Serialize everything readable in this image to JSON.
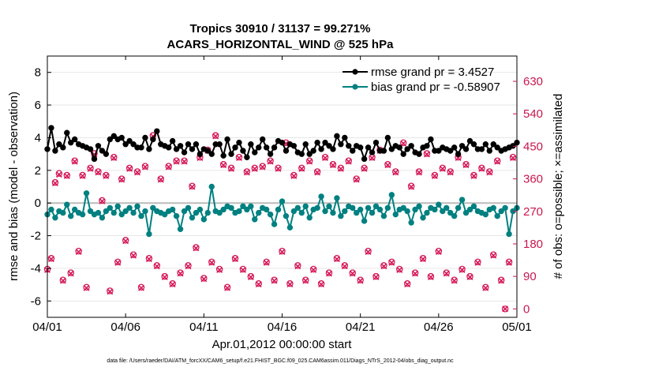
{
  "colors": {
    "rmse": "#000000",
    "bias": "#008080",
    "obs": "#d41a5a",
    "right_axis": "#c8174f",
    "legend_text": "#1a4fd6",
    "zero_line": "#bbbbbb",
    "grid": "#e3e3e3"
  },
  "chart_data": {
    "type": "line",
    "title_line1": "Tropics 30910 / 31137 = 99.271%",
    "title_line2": "ACARS_HORIZONTAL_WIND @ 525 hPa",
    "xlabel": "Apr.01,2012 00:00:00 start",
    "ylabel_left": "rmse and bias (model - observation)",
    "ylabel_right": "# of obs: o=possible; ×=assimilated",
    "footer": "data file: /Users/raeder/DAI/ATM_forcXX/CAM6_setup/f.e21.FHIST_BGC.f09_025.CAM6assim.011/Diags_NTrS_2012-04/obs_diag_output.nc",
    "x_range_days": [
      0,
      30
    ],
    "x_ticks": [
      {
        "day": 0,
        "label": "04/01"
      },
      {
        "day": 5,
        "label": "04/06"
      },
      {
        "day": 10,
        "label": "04/11"
      },
      {
        "day": 15,
        "label": "04/16"
      },
      {
        "day": 20,
        "label": "04/21"
      },
      {
        "day": 25,
        "label": "04/26"
      },
      {
        "day": 30,
        "label": "05/01"
      }
    ],
    "ylim_left": [
      -7,
      9
    ],
    "y_ticks_left": [
      8,
      6,
      4,
      2,
      0,
      -2,
      -4,
      -6
    ],
    "ylim_right": [
      -23.3,
      700
    ],
    "y_ticks_right": [
      630,
      540,
      450,
      360,
      270,
      180,
      90,
      0
    ],
    "legend": [
      {
        "name": "rmse grand pr = 3.4527",
        "series": "rmse"
      },
      {
        "name": "bias grand pr = -0.58907",
        "series": "bias"
      }
    ],
    "x_step_days": 0.25,
    "series": [
      {
        "name": "rmse",
        "values": [
          3.3,
          4.6,
          3.2,
          3.6,
          3.4,
          4.3,
          3.7,
          3.9,
          3.6,
          3.5,
          3.4,
          3.3,
          2.7,
          3.5,
          3.2,
          3.0,
          3.9,
          4.1,
          3.9,
          4.0,
          3.6,
          3.8,
          3.6,
          3.4,
          3.4,
          4.0,
          3.3,
          3.9,
          4.4,
          3.6,
          3.5,
          3.4,
          3.8,
          3.3,
          3.5,
          3.1,
          3.6,
          3.3,
          3.6,
          3.0,
          3.3,
          3.2,
          3.0,
          3.6,
          3.6,
          2.9,
          3.9,
          3.0,
          3.4,
          3.7,
          3.2,
          2.8,
          3.6,
          3.1,
          3.4,
          3.9,
          3.4,
          3.0,
          3.4,
          3.8,
          3.7,
          3.2,
          3.6,
          3.5,
          3.1,
          3.0,
          3.6,
          3.0,
          3.2,
          3.7,
          3.3,
          3.7,
          3.5,
          3.3,
          4.1,
          3.6,
          4.0,
          3.5,
          3.2,
          3.5,
          3.4,
          2.7,
          3.4,
          3.1,
          3.7,
          3.2,
          3.2,
          4.0,
          3.3,
          3.5,
          3.4,
          3.0,
          3.3,
          3.5,
          3.1,
          3.0,
          3.4,
          3.5,
          3.9,
          3.2,
          3.2,
          3.4,
          3.3,
          3.2,
          3.4,
          3.0,
          3.5,
          3.3,
          3.8,
          3.6,
          3.3,
          3.3,
          3.6,
          3.2,
          3.6,
          3.4,
          3.2,
          3.3,
          3.4,
          3.5,
          3.7
        ],
        "raw": [
          3.3,
          4.6,
          3.2,
          3.6,
          3.4,
          4.3,
          3.7,
          3.9,
          3.6,
          3.5,
          3.4,
          3.3,
          2.7,
          3.5,
          3.2,
          3.0,
          3.9,
          4.1,
          3.9,
          4.0,
          3.6,
          3.8,
          3.6,
          3.4,
          3.4,
          4.0,
          3.3,
          3.9,
          4.4,
          3.6,
          3.5,
          3.4,
          3.8,
          3.3,
          3.5,
          3.1,
          3.6,
          3.3,
          3.6,
          3.0
        ]
      },
      {
        "name": "bias",
        "values": [
          -0.7,
          -0.4,
          -0.9,
          -0.5,
          -0.6,
          -0.1,
          -0.8,
          -0.4,
          -0.6,
          -0.7,
          0.6,
          -0.5,
          -0.7,
          -0.6,
          -0.9,
          -0.5,
          -0.3,
          -0.6,
          -0.2,
          -0.7,
          -0.5,
          -0.3,
          -0.6,
          -0.2,
          -0.8,
          -0.5,
          -1.9,
          -0.3,
          -0.5,
          -0.6,
          -0.7,
          -0.5,
          -0.4,
          -0.8,
          -1.6,
          -0.5,
          -0.3,
          -0.9,
          -0.6,
          -0.4,
          -1.0,
          -0.6,
          1.0,
          -0.5,
          -0.6,
          -0.4,
          -0.2,
          -0.3,
          -0.6,
          -0.5,
          -0.2,
          -0.4,
          -0.2,
          -1.0,
          -0.6,
          -0.3,
          -0.4,
          -0.7,
          -1.3,
          -0.4,
          0.1,
          -0.8,
          -1.5,
          -0.5,
          -0.3,
          -0.6,
          -0.2,
          -0.9,
          -0.4,
          -0.3,
          0.4,
          -0.5,
          -0.2,
          -0.6,
          0.3,
          -0.8,
          -0.5,
          -0.2,
          -0.3,
          -0.6,
          -0.4,
          -1.1,
          -0.3,
          -0.6,
          -0.2,
          -0.4,
          -0.8,
          -0.3,
          0.5,
          -0.7,
          -0.4,
          -0.3,
          -0.5,
          -1.2,
          -0.4,
          -0.2,
          -0.9,
          -0.6,
          -0.3,
          -0.4,
          -0.1,
          -0.5,
          -0.3,
          -0.6,
          -0.8,
          -0.3,
          0.2,
          -0.6,
          -0.4,
          -0.2,
          -0.5,
          -0.6,
          -0.7,
          -0.4,
          -0.3,
          -0.8,
          -0.5,
          -0.3,
          -1.9,
          -0.5,
          -0.3
        ]
      },
      {
        "name": "obs_possible",
        "values": [
          110,
          140,
          350,
          375,
          80,
          370,
          100,
          410,
          160,
          370,
          60,
          390,
          430,
          380,
          300,
          370,
          50,
          420,
          130,
          360,
          190,
          390,
          150,
          380,
          60,
          395,
          140,
          480,
          120,
          360,
          90,
          395,
          70,
          410,
          100,
          410,
          120,
          340,
          170,
          420,
          85,
          440,
          130,
          480,
          110,
          400,
          60,
          390,
          140,
          420,
          110,
          380,
          90,
          390,
          70,
          395,
          130,
          410,
          80,
          390,
          160,
          460,
          70,
          370,
          120,
          390,
          80,
          410,
          110,
          380,
          70,
          420,
          100,
          400,
          140,
          390,
          120,
          410,
          100,
          360,
          80,
          390,
          160,
          420,
          90,
          440,
          120,
          400,
          130,
          380,
          110,
          460,
          70,
          340,
          100,
          380,
          140,
          430,
          90,
          370,
          160,
          390,
          100,
          380,
          80,
          420,
          110,
          400,
          90,
          370,
          130,
          390,
          60,
          380,
          150,
          410,
          80,
          0,
          130,
          420
        ]
      },
      {
        "name": "obs_assimilated",
        "values": [
          108,
          138,
          348,
          372,
          78,
          368,
          98,
          408,
          158,
          368,
          58,
          388,
          428,
          378,
          298,
          368,
          48,
          418,
          128,
          358,
          188,
          388,
          148,
          378,
          58,
          393,
          138,
          478,
          118,
          358,
          88,
          393,
          68,
          408,
          98,
          408,
          118,
          338,
          168,
          418,
          83,
          438,
          128,
          478,
          108,
          398,
          58,
          388,
          138,
          418,
          108,
          378,
          88,
          388,
          68,
          393,
          128,
          408,
          78,
          388,
          158,
          458,
          68,
          368,
          118,
          388,
          78,
          408,
          108,
          378,
          68,
          418,
          98,
          398,
          138,
          388,
          118,
          408,
          98,
          358,
          78,
          388,
          158,
          418,
          88,
          438,
          118,
          398,
          128,
          378,
          108,
          458,
          68,
          338,
          98,
          378,
          138,
          428,
          88,
          368,
          158,
          388,
          98,
          378,
          78,
          418,
          108,
          398,
          88,
          368,
          128,
          388,
          58,
          378,
          148,
          408,
          78,
          0,
          128,
          418
        ]
      }
    ]
  }
}
